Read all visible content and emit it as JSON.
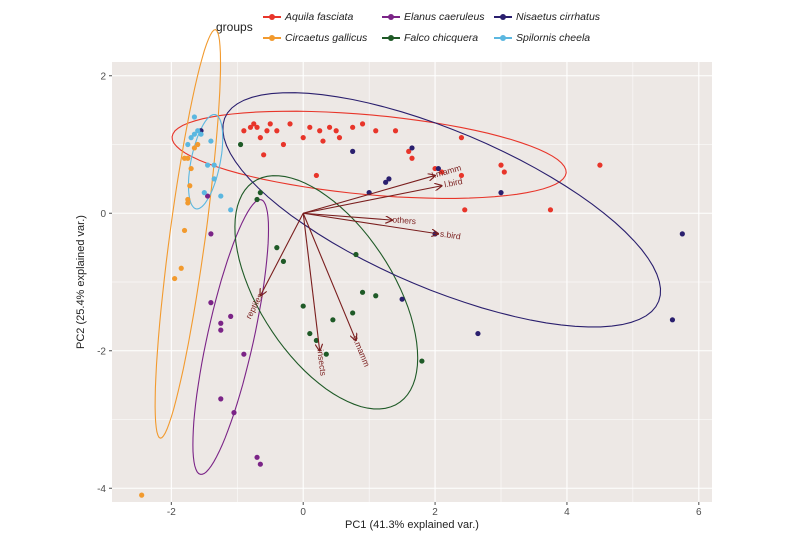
{
  "legend": {
    "title": "groups",
    "items": [
      {
        "label": "Aquila fasciata",
        "color": "#e8352a"
      },
      {
        "label": "Circaetus gallicus",
        "color": "#f29a2e"
      },
      {
        "label": "Elanus caeruleus",
        "color": "#7b2487"
      },
      {
        "label": "Falco chicquera",
        "color": "#1f5a27"
      },
      {
        "label": "Nisaetus cirrhatus",
        "color": "#2a1f6e"
      },
      {
        "label": "Spilornis cheela",
        "color": "#5bb7e0"
      }
    ]
  },
  "chart_data": {
    "type": "scatter",
    "subtype": "pca-biplot",
    "xlabel": "PC1 (41.3% explained var.)",
    "ylabel": "PC2 (25.4% explained var.)",
    "xlim": [
      -2.9,
      6.2
    ],
    "ylim": [
      -4.2,
      2.2
    ],
    "xticks": [
      -2,
      0,
      2,
      4,
      6
    ],
    "yticks": [
      -4,
      -2,
      0,
      2
    ],
    "grid": true,
    "legend_position": "top",
    "series": [
      {
        "name": "Aquila fasciata",
        "color": "#e8352a",
        "points": [
          [
            -0.9,
            1.2
          ],
          [
            -0.8,
            1.25
          ],
          [
            -0.75,
            1.3
          ],
          [
            -0.7,
            1.25
          ],
          [
            -0.55,
            1.2
          ],
          [
            -0.5,
            1.3
          ],
          [
            -0.4,
            1.2
          ],
          [
            -0.3,
            1.0
          ],
          [
            -0.2,
            1.3
          ],
          [
            0.0,
            1.1
          ],
          [
            0.1,
            1.25
          ],
          [
            0.25,
            1.2
          ],
          [
            0.3,
            1.05
          ],
          [
            0.4,
            1.25
          ],
          [
            0.5,
            1.2
          ],
          [
            0.55,
            1.1
          ],
          [
            0.75,
            1.25
          ],
          [
            0.9,
            1.3
          ],
          [
            1.1,
            1.2
          ],
          [
            1.4,
            1.2
          ],
          [
            1.6,
            0.9
          ],
          [
            1.65,
            0.8
          ],
          [
            2.0,
            0.65
          ],
          [
            2.1,
            0.6
          ],
          [
            2.4,
            0.55
          ],
          [
            2.45,
            0.05
          ],
          [
            2.4,
            1.1
          ],
          [
            3.0,
            0.7
          ],
          [
            3.05,
            0.6
          ],
          [
            3.75,
            0.05
          ],
          [
            4.5,
            0.7
          ],
          [
            -0.6,
            0.85
          ],
          [
            -0.65,
            1.1
          ],
          [
            0.2,
            0.55
          ]
        ]
      },
      {
        "name": "Circaetus gallicus",
        "color": "#f29a2e",
        "points": [
          [
            -1.8,
            0.8
          ],
          [
            -1.75,
            0.8
          ],
          [
            -1.7,
            0.65
          ],
          [
            -1.72,
            0.4
          ],
          [
            -1.75,
            0.2
          ],
          [
            -1.75,
            0.15
          ],
          [
            -1.8,
            -0.25
          ],
          [
            -1.85,
            -0.8
          ],
          [
            -1.95,
            -0.95
          ],
          [
            -1.6,
            1.0
          ],
          [
            -1.65,
            0.95
          ],
          [
            -2.45,
            -4.1
          ]
        ]
      },
      {
        "name": "Elanus caeruleus",
        "color": "#7b2487",
        "points": [
          [
            -1.45,
            0.25
          ],
          [
            -1.4,
            -0.3
          ],
          [
            -1.4,
            -1.3
          ],
          [
            -1.25,
            -1.6
          ],
          [
            -1.25,
            -1.7
          ],
          [
            -1.1,
            -1.5
          ],
          [
            -0.9,
            -2.05
          ],
          [
            -1.25,
            -2.7
          ],
          [
            -1.05,
            -2.9
          ],
          [
            -0.7,
            -3.55
          ],
          [
            -0.65,
            -3.65
          ]
        ]
      },
      {
        "name": "Falco chicquera",
        "color": "#1f5a27",
        "points": [
          [
            -0.95,
            1.0
          ],
          [
            -0.65,
            0.3
          ],
          [
            -0.7,
            0.2
          ],
          [
            -0.4,
            -0.5
          ],
          [
            -0.3,
            -0.7
          ],
          [
            0.0,
            -1.35
          ],
          [
            0.1,
            -1.75
          ],
          [
            0.2,
            -1.85
          ],
          [
            0.35,
            -2.05
          ],
          [
            0.45,
            -1.55
          ],
          [
            0.75,
            -1.45
          ],
          [
            0.8,
            -0.6
          ],
          [
            0.9,
            -1.15
          ],
          [
            1.1,
            -1.2
          ],
          [
            1.8,
            -2.15
          ]
        ]
      },
      {
        "name": "Nisaetus cirrhatus",
        "color": "#2a1f6e",
        "points": [
          [
            -1.55,
            1.2
          ],
          [
            0.75,
            0.9
          ],
          [
            1.25,
            0.45
          ],
          [
            1.3,
            0.5
          ],
          [
            1.0,
            0.3
          ],
          [
            1.65,
            0.95
          ],
          [
            2.05,
            0.65
          ],
          [
            2.0,
            -0.3
          ],
          [
            3.0,
            0.3
          ],
          [
            1.5,
            -1.25
          ],
          [
            2.65,
            -1.75
          ],
          [
            5.6,
            -1.55
          ],
          [
            5.75,
            -0.3
          ]
        ]
      },
      {
        "name": "Spilornis cheela",
        "color": "#5bb7e0",
        "points": [
          [
            -1.65,
            1.4
          ],
          [
            -1.6,
            1.2
          ],
          [
            -1.55,
            1.15
          ],
          [
            -1.65,
            1.15
          ],
          [
            -1.7,
            1.1
          ],
          [
            -1.75,
            1.0
          ],
          [
            -1.4,
            1.05
          ],
          [
            -1.35,
            0.7
          ],
          [
            -1.35,
            0.5
          ],
          [
            -1.5,
            0.3
          ],
          [
            -1.25,
            0.25
          ],
          [
            -1.1,
            0.05
          ],
          [
            -1.45,
            0.7
          ]
        ]
      }
    ],
    "ellipses": [
      {
        "name": "Aquila fasciata",
        "color": "#e8352a",
        "cx": 1.0,
        "cy": 0.85,
        "rx": 3.0,
        "ry": 0.58,
        "angle_deg": -5
      },
      {
        "name": "Circaetus gallicus",
        "color": "#f29a2e",
        "cx": -1.75,
        "cy": -0.3,
        "rx": 3.0,
        "ry": 0.27,
        "angle_deg": 82
      },
      {
        "name": "Elanus caeruleus",
        "color": "#7b2487",
        "cx": -1.1,
        "cy": -1.8,
        "rx": 2.05,
        "ry": 0.35,
        "angle_deg": 77
      },
      {
        "name": "Falco chicquera",
        "color": "#1f5a27",
        "cx": 0.35,
        "cy": -1.15,
        "rx": 1.95,
        "ry": 1.0,
        "angle_deg": -55
      },
      {
        "name": "Nisaetus cirrhatus",
        "color": "#2a1f6e",
        "cx": 2.1,
        "cy": 0.05,
        "rx": 3.55,
        "ry": 1.15,
        "angle_deg": -22
      },
      {
        "name": "Spilornis cheela",
        "color": "#5bb7e0",
        "cx": -1.48,
        "cy": 0.75,
        "rx": 0.7,
        "ry": 0.22,
        "angle_deg": 78
      }
    ],
    "loadings": [
      {
        "label": "l.mamm",
        "x": 2.0,
        "y": 0.55
      },
      {
        "label": "l.bird",
        "x": 2.1,
        "y": 0.4
      },
      {
        "label": "others",
        "x": 1.35,
        "y": -0.1
      },
      {
        "label": "s.bird",
        "x": 2.05,
        "y": -0.3
      },
      {
        "label": "reptiles",
        "x": -0.65,
        "y": -1.2
      },
      {
        "label": "insects",
        "x": 0.25,
        "y": -2.0
      },
      {
        "label": "s.mamm",
        "x": 0.8,
        "y": -1.85
      }
    ],
    "loading_color": "#7a1e1e",
    "panel_background": "#ede8e5",
    "grid_color": "#ffffff"
  }
}
